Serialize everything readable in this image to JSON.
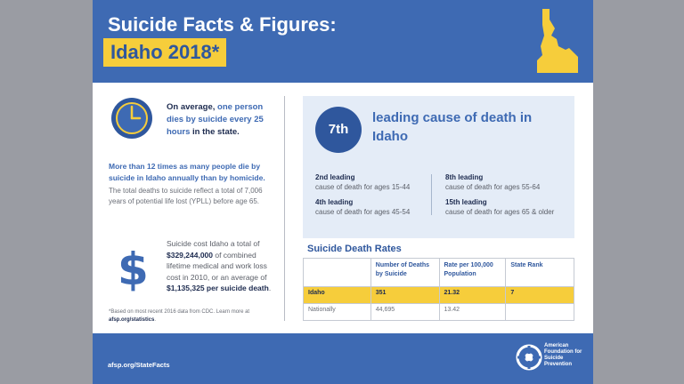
{
  "header": {
    "title_line1": "Suicide Facts & Figures:",
    "title_line2": "Idaho 2018*"
  },
  "average": {
    "prefix": "On average, ",
    "highlight": "one person dies by suicide every 25 hours",
    "suffix": " in the state."
  },
  "homicide_text": "More than 12 times as many people die by suicide in Idaho annually than by homicide.",
  "yppl_text": "The total deaths to suicide reflect a total of 7,006 years of potential life lost (YPLL) before age 65.",
  "cost": {
    "dollar_sign": "$",
    "part1": "Suicide cost Idaho a total of ",
    "amount1": "$329,244,000",
    "part2": " of combined lifetime medical and work loss cost in 2010, or an average of ",
    "amount2": "$1,135,325 per suicide death",
    "part3": "."
  },
  "footnote": {
    "text": "*Based on most recent 2016 data from CDC. Learn more at ",
    "link": "afsp.org/statistics",
    "end": "."
  },
  "rank": {
    "badge": "7th",
    "title": "leading cause of death in Idaho",
    "items": [
      {
        "lead": "2nd leading",
        "desc": "cause of death for ages 15-44"
      },
      {
        "lead": "4th leading",
        "desc": "cause of death for ages 45-54"
      },
      {
        "lead": "8th leading",
        "desc": "cause of death for ages 55-64"
      },
      {
        "lead": "15th leading",
        "desc": "cause of death for ages 65 & older"
      }
    ]
  },
  "rates": {
    "title": "Suicide Death Rates",
    "headers": [
      "",
      "Number of Deaths by Suicide",
      "Rate per 100,000 Population",
      "State Rank"
    ],
    "rows": [
      [
        "Idaho",
        "351",
        "21.32",
        "7"
      ],
      [
        "Nationally",
        "44,695",
        "13.42",
        ""
      ]
    ]
  },
  "footer": {
    "url": "afsp.org/StateFacts",
    "org_name": "American Foundation for Suicide Prevention"
  },
  "colors": {
    "brand_blue": "#3e6ab3",
    "dark_blue": "#2f579d",
    "highlight_yellow": "#f6cd3b",
    "panel_blue": "#e4ecf7"
  },
  "icons": [
    "idaho-state-shape-icon",
    "clock-icon",
    "dollar-icon",
    "afsp-logo-icon"
  ]
}
